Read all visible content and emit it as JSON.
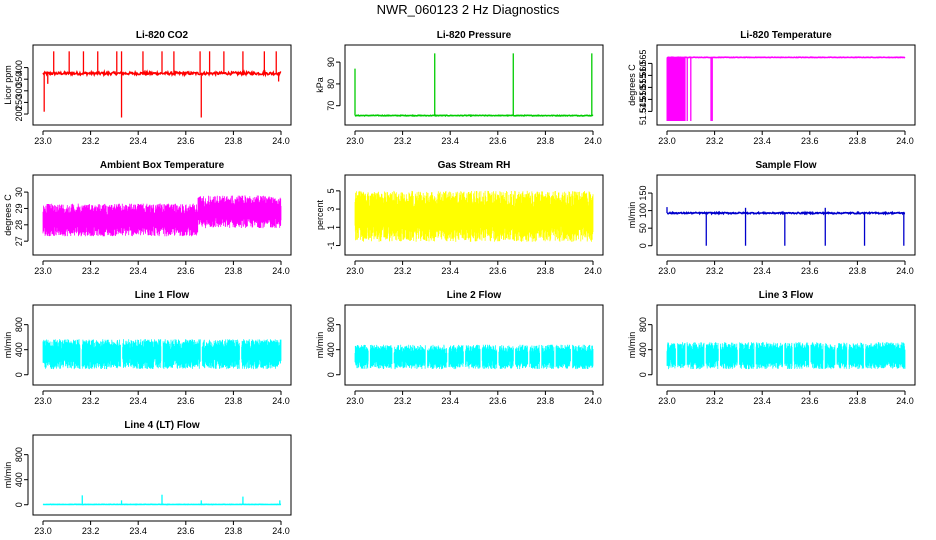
{
  "figure_title": "NWR_060123  2 Hz Diagnostics",
  "chart_data": [
    {
      "type": "line",
      "title": "Li-820 CO2",
      "ylabel": "Licor ppm",
      "color": "#ff0000",
      "xlim": [
        23.0,
        24.0
      ],
      "ylim": [
        170,
        480
      ],
      "x_ticks": [
        "23.0",
        "23.2",
        "23.4",
        "23.6",
        "23.8",
        "24.0"
      ],
      "y_ticks": [
        200,
        250,
        300,
        350,
        400
      ],
      "series": [
        {
          "baseline": 375,
          "noise": 6,
          "spikes_up": [
            [
              23.045,
              470
            ],
            [
              23.11,
              470
            ],
            [
              23.17,
              470
            ],
            [
              23.23,
              470
            ],
            [
              23.31,
              470
            ],
            [
              23.33,
              470
            ],
            [
              23.42,
              470
            ],
            [
              23.5,
              470
            ],
            [
              23.55,
              470
            ],
            [
              23.66,
              470
            ],
            [
              23.7,
              470
            ],
            [
              23.76,
              470
            ],
            [
              23.84,
              470
            ],
            [
              23.93,
              470
            ],
            [
              23.98,
              470
            ]
          ],
          "spikes_down": [
            [
              23.005,
              210
            ],
            [
              23.02,
              330
            ],
            [
              23.33,
              185
            ],
            [
              23.665,
              185
            ],
            [
              23.99,
              340
            ]
          ]
        }
      ]
    },
    {
      "type": "line",
      "title": "Li-820 Pressure",
      "ylabel": "kPa",
      "color": "#00cc00",
      "xlim": [
        23.0,
        24.0
      ],
      "ylim": [
        63,
        96
      ],
      "x_ticks": [
        "23.0",
        "23.2",
        "23.4",
        "23.6",
        "23.8",
        "24.0"
      ],
      "y_ticks": [
        70,
        80,
        90
      ],
      "series": [
        {
          "baseline": 65.5,
          "noise": 0.15,
          "spikes_up": [
            [
              23.0,
              87
            ],
            [
              23.335,
              94
            ],
            [
              23.665,
              94
            ],
            [
              23.995,
              94
            ]
          ],
          "spikes_down": []
        }
      ]
    },
    {
      "type": "line",
      "title": "Li-820 Temperature",
      "ylabel": "degrees C",
      "color": "#ff00ff",
      "xlim": [
        23.0,
        24.0
      ],
      "ylim": [
        51.541,
        51.571
      ],
      "x_ticks": [
        "23.0",
        "23.2",
        "23.4",
        "23.6",
        "23.8",
        "24.0"
      ],
      "y_ticks": [
        51.545,
        51.55,
        51.555,
        51.56,
        51.565
      ],
      "y_tick_labels": [
        "51.545",
        "51.550",
        "51.555",
        "51.560",
        "51.565"
      ],
      "series": [
        {
          "baseline": 51.5675,
          "noise": 0.0001,
          "dense_drop_range": [
            23.0,
            23.08
          ],
          "spikes_down": [
            [
              23.085,
              51.541
            ],
            [
              23.1,
              51.541
            ],
            [
              23.185,
              51.541
            ],
            [
              23.19,
              51.541
            ]
          ],
          "spikes_up": []
        }
      ]
    },
    {
      "type": "line",
      "title": "Ambient Box Temperature",
      "ylabel": "degrees C",
      "color": "#ff00ff",
      "xlim": [
        23.0,
        24.0
      ],
      "ylim": [
        26.4,
        30.8
      ],
      "x_ticks": [
        "23.0",
        "23.2",
        "23.4",
        "23.6",
        "23.8",
        "24.0"
      ],
      "y_ticks": [
        27,
        28,
        29,
        30
      ],
      "series": [
        {
          "band_low": 27.3,
          "band_high": 29.3,
          "band_low_late": 27.8,
          "band_high_late": 29.8,
          "shift_at": 23.65
        }
      ]
    },
    {
      "type": "line",
      "title": "Gas Stream RH",
      "ylabel": "percent",
      "color": "#ffff00",
      "xlim": [
        23.0,
        24.0
      ],
      "ylim": [
        -1.6,
        6.3
      ],
      "x_ticks": [
        "23.0",
        "23.2",
        "23.4",
        "23.6",
        "23.8",
        "24.0"
      ],
      "y_ticks": [
        -1,
        1,
        3,
        5
      ],
      "series": [
        {
          "band_low": -0.6,
          "band_high": 5.0,
          "band_low_late": -0.6,
          "band_high_late": 5.0,
          "shift_at": 23.65
        }
      ]
    },
    {
      "type": "line",
      "title": "Sample Flow",
      "ylabel": "ml/min",
      "color": "#0000cc",
      "xlim": [
        23.0,
        24.0
      ],
      "ylim": [
        -15,
        190
      ],
      "x_ticks": [
        "23.0",
        "23.2",
        "23.4",
        "23.6",
        "23.8",
        "24.0"
      ],
      "y_ticks": [
        0,
        50,
        100,
        150
      ],
      "series": [
        {
          "baseline": 93,
          "noise": 2,
          "spikes_up": [
            [
              23.0,
              110
            ],
            [
              23.33,
              108
            ],
            [
              23.665,
              108
            ]
          ],
          "spikes_down": [
            [
              23.165,
              0
            ],
            [
              23.33,
              0
            ],
            [
              23.495,
              0
            ],
            [
              23.665,
              0
            ],
            [
              23.83,
              0
            ],
            [
              23.995,
              0
            ]
          ]
        }
      ]
    },
    {
      "type": "line",
      "title": "Line 1 Flow",
      "ylabel": "ml/min",
      "color": "#00ffff",
      "xlim": [
        23.0,
        24.0
      ],
      "ylim": [
        -100,
        1050
      ],
      "x_ticks": [
        "23.0",
        "23.2",
        "23.4",
        "23.6",
        "23.8",
        "24.0"
      ],
      "y_ticks": [
        0,
        400,
        800
      ],
      "series": [
        {
          "band_low": 90,
          "band_high": 570,
          "gaps": [
            23.16,
            23.33,
            23.5,
            23.665,
            23.83
          ]
        }
      ]
    },
    {
      "type": "line",
      "title": "Line 2 Flow",
      "ylabel": "ml/min",
      "color": "#00ffff",
      "xlim": [
        23.0,
        24.0
      ],
      "ylim": [
        -100,
        1050
      ],
      "x_ticks": [
        "23.0",
        "23.2",
        "23.4",
        "23.6",
        "23.8",
        "24.0"
      ],
      "y_ticks": [
        0,
        400,
        800
      ],
      "series": [
        {
          "band_low": 90,
          "band_high": 480,
          "gaps": [
            23.06,
            23.16,
            23.3,
            23.39,
            23.46,
            23.53,
            23.6,
            23.67,
            23.73,
            23.78,
            23.84,
            23.91
          ]
        }
      ]
    },
    {
      "type": "line",
      "title": "Line 3 Flow",
      "ylabel": "ml/min",
      "color": "#00ffff",
      "xlim": [
        23.0,
        24.0
      ],
      "ylim": [
        -100,
        1050
      ],
      "x_ticks": [
        "23.0",
        "23.2",
        "23.4",
        "23.6",
        "23.8",
        "24.0"
      ],
      "y_ticks": [
        0,
        400,
        800
      ],
      "series": [
        {
          "band_low": 90,
          "band_high": 520,
          "gaps": [
            23.04,
            23.08,
            23.16,
            23.22,
            23.3,
            23.37,
            23.49,
            23.53,
            23.6,
            23.66,
            23.71,
            23.76,
            23.83
          ]
        }
      ]
    },
    {
      "type": "line",
      "title": "Line 4 (LT) Flow",
      "ylabel": "ml/min",
      "color": "#00ffff",
      "xlim": [
        23.0,
        24.0
      ],
      "ylim": [
        -100,
        1050
      ],
      "x_ticks": [
        "23.0",
        "23.2",
        "23.4",
        "23.6",
        "23.8",
        "24.0"
      ],
      "y_ticks": [
        0,
        400,
        800
      ],
      "series": [
        {
          "baseline": 5,
          "noise": 2,
          "spikes_up": [
            [
              23.165,
              150
            ],
            [
              23.33,
              70
            ],
            [
              23.5,
              160
            ],
            [
              23.665,
              70
            ],
            [
              23.84,
              130
            ],
            [
              23.995,
              70
            ]
          ],
          "spikes_down": []
        }
      ]
    }
  ]
}
